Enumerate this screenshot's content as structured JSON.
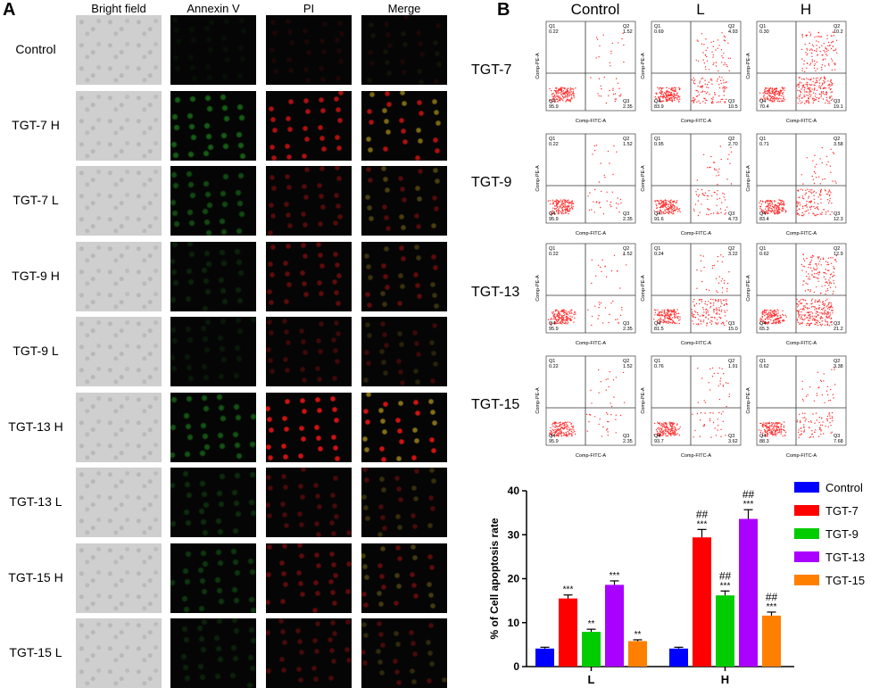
{
  "panelA": {
    "letter": "A",
    "columns": [
      "Bright field",
      "Annexin V",
      "PI",
      "Merge"
    ],
    "rows": [
      {
        "label": "Control",
        "annexin": 0.05,
        "pi": 0.1
      },
      {
        "label": "TGT-7 H",
        "annexin": 0.45,
        "pi": 0.75
      },
      {
        "label": "TGT-7 L",
        "annexin": 0.35,
        "pi": 0.35
      },
      {
        "label": "TGT-9 H",
        "annexin": 0.15,
        "pi": 0.4
      },
      {
        "label": "TGT-9 L",
        "annexin": 0.1,
        "pi": 0.25
      },
      {
        "label": "TGT-13 H",
        "annexin": 0.4,
        "pi": 0.9
      },
      {
        "label": "TGT-13 L",
        "annexin": 0.2,
        "pi": 0.3
      },
      {
        "label": "TGT-15 H",
        "annexin": 0.25,
        "pi": 0.4
      },
      {
        "label": "TGT-15 L",
        "annexin": 0.15,
        "pi": 0.3
      }
    ]
  },
  "panelB": {
    "letter": "B",
    "columns": [
      "Control",
      "L",
      "H"
    ],
    "x_axis_label": "Comp-FITC-A",
    "y_axis_label": "Comp-PE-A",
    "rows": [
      {
        "label": "TGT-7",
        "plots": [
          {
            "q1": "0.22",
            "q2": "1.52",
            "q3": "2.35",
            "q4": "95.9"
          },
          {
            "q1": "0.69",
            "q2": "4.93",
            "q3": "10.5",
            "q4": "83.9"
          },
          {
            "q1": "0.30",
            "q2": "10.2",
            "q3": "19.1",
            "q4": "70.4"
          }
        ]
      },
      {
        "label": "TGT-9",
        "plots": [
          {
            "q1": "0.22",
            "q2": "1.52",
            "q3": "2.35",
            "q4": "95.9"
          },
          {
            "q1": "0.95",
            "q2": "2.70",
            "q3": "4.73",
            "q4": "91.6"
          },
          {
            "q1": "0.71",
            "q2": "3.58",
            "q3": "12.3",
            "q4": "83.4"
          }
        ]
      },
      {
        "label": "TGT-13",
        "plots": [
          {
            "q1": "0.22",
            "q2": "1.52",
            "q3": "2.35",
            "q4": "95.9"
          },
          {
            "q1": "0.24",
            "q2": "3.22",
            "q3": "15.0",
            "q4": "81.5"
          },
          {
            "q1": "0.62",
            "q2": "12.9",
            "q3": "21.2",
            "q4": "65.3"
          }
        ]
      },
      {
        "label": "TGT-15",
        "plots": [
          {
            "q1": "0.22",
            "q2": "1.52",
            "q3": "2.35",
            "q4": "95.9"
          },
          {
            "q1": "0.76",
            "q2": "1.91",
            "q3": "3.62",
            "q4": "93.7"
          },
          {
            "q1": "0.62",
            "q2": "3.38",
            "q3": "7.68",
            "q4": "88.3"
          }
        ]
      }
    ]
  },
  "chart_data": {
    "type": "bar",
    "categories": [
      "L",
      "H"
    ],
    "ylabel": "% of Cell apoptosis rate",
    "ylim": [
      0,
      40
    ],
    "yticks": [
      "0",
      "10",
      "20",
      "30",
      "40"
    ],
    "legend_position": "right",
    "series": [
      {
        "name": "Control",
        "color": "#0000ff",
        "values": [
          4.1,
          4.1
        ],
        "errors": [
          0.3,
          0.3
        ],
        "annotations": [
          [
            "",
            ""
          ],
          [
            "",
            ""
          ]
        ]
      },
      {
        "name": "TGT-7",
        "color": "#ff0000",
        "values": [
          15.5,
          29.4
        ],
        "errors": [
          0.8,
          1.8
        ],
        "annotations": [
          [
            "***",
            ""
          ],
          [
            "***",
            "##"
          ]
        ]
      },
      {
        "name": "TGT-9",
        "color": "#00cc00",
        "values": [
          7.9,
          16.2
        ],
        "errors": [
          0.6,
          1.0
        ],
        "annotations": [
          [
            "**",
            ""
          ],
          [
            "***",
            "##"
          ]
        ]
      },
      {
        "name": "TGT-13",
        "color": "#aa00ff",
        "values": [
          18.6,
          33.6
        ],
        "errors": [
          0.9,
          2.1
        ],
        "annotations": [
          [
            "***",
            ""
          ],
          [
            "***",
            "##"
          ]
        ]
      },
      {
        "name": "TGT-15",
        "color": "#ff8000",
        "values": [
          5.8,
          11.6
        ],
        "errors": [
          0.3,
          0.8
        ],
        "annotations": [
          [
            "**",
            ""
          ],
          [
            "***",
            "##"
          ]
        ]
      }
    ]
  }
}
